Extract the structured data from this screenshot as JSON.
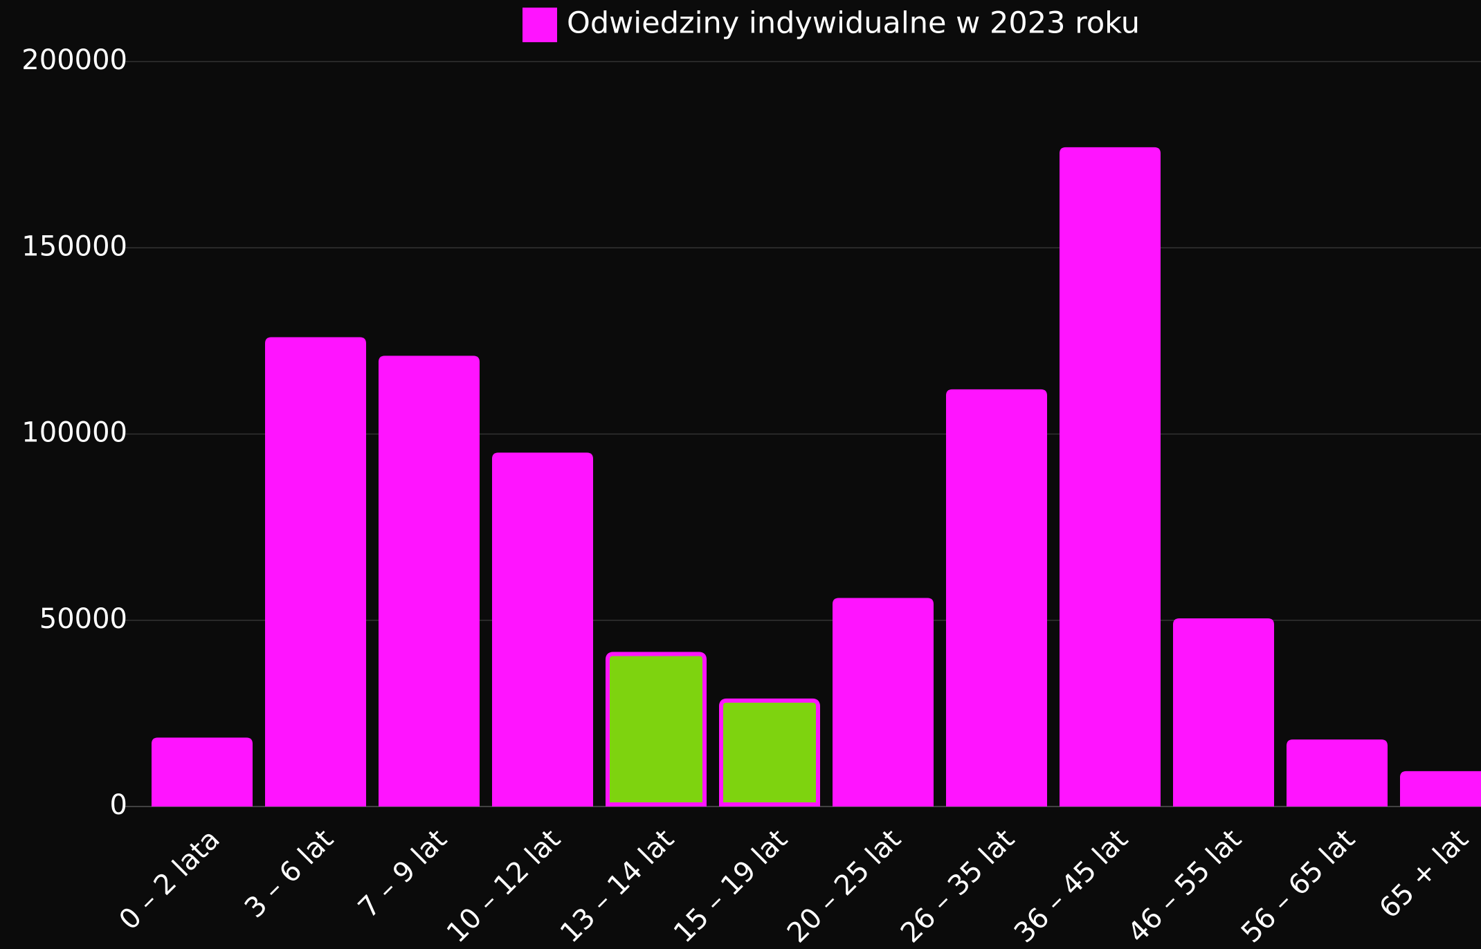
{
  "chart_data": {
    "type": "bar",
    "categories": [
      "0 – 2 lata",
      "3 – 6 lat",
      "7 – 9 lat",
      "10 – 12 lat",
      "13 – 14 lat",
      "15 – 19 lat",
      "20 – 25 lat",
      "26 – 35 lat",
      "36 – 45 lat",
      "46 – 55 lat",
      "56 – 65 lat",
      "65 + lat"
    ],
    "series": [
      {
        "name": "Odwiedziny indywidualne w 2023 roku",
        "color": "#ff14ff",
        "values": [
          18500,
          126000,
          121000,
          95000,
          41500,
          29000,
          56000,
          112000,
          177000,
          50500,
          18000,
          9500
        ],
        "colors": [
          "#ff14ff",
          "#ff14ff",
          "#ff14ff",
          "#ff14ff",
          "#7ed30f",
          "#7ed30f",
          "#ff14ff",
          "#ff14ff",
          "#ff14ff",
          "#ff14ff",
          "#ff14ff",
          "#ff14ff"
        ]
      }
    ],
    "ylim": [
      0,
      200000
    ],
    "yticks": [
      0,
      50000,
      100000,
      150000,
      200000
    ],
    "grid": true,
    "legend": "top"
  }
}
